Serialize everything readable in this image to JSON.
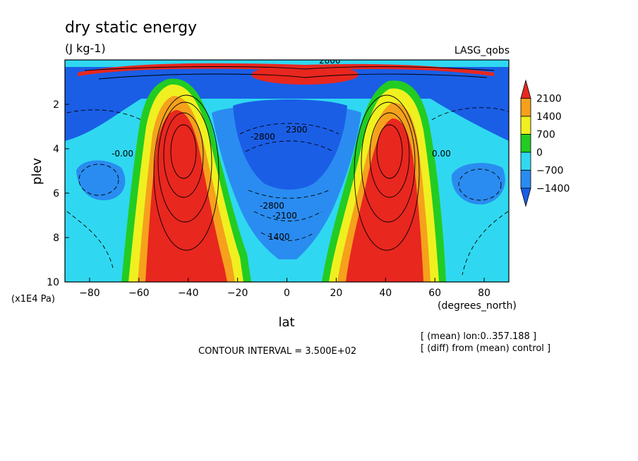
{
  "chart_data": {
    "type": "heatmap",
    "title": "dry static energy",
    "units": "(J kg-1)",
    "model": "LASG_qobs",
    "xlabel": "lat",
    "xunits": "(degrees_north)",
    "ylabel": "plev",
    "yunits": "(x1E4 Pa)",
    "xlim": [
      -90,
      90
    ],
    "ylim": [
      0,
      10
    ],
    "x_ticks": [
      "-80",
      "-60",
      "-40",
      "-20",
      "0",
      "20",
      "40",
      "60",
      "80"
    ],
    "x_tick_values": [
      -80,
      -60,
      -40,
      -20,
      0,
      20,
      40,
      60,
      80
    ],
    "y_ticks": [
      "2",
      "4",
      "6",
      "8",
      "10"
    ],
    "y_tick_values": [
      2,
      4,
      6,
      8,
      10
    ],
    "colorbar": {
      "labels": [
        "2100",
        "1400",
        "700",
        "0",
        "−700",
        "−1400"
      ],
      "levels": [
        2100,
        1400,
        700,
        0,
        -700,
        -1400
      ],
      "colors": [
        "#e8271f",
        "#f5a11c",
        "#f0f020",
        "#22cc22",
        "#2fd8f0",
        "#2a8cf0",
        "#1a5ee6"
      ]
    },
    "contour_interval": "CONTOUR INTERVAL = 3.500E+02",
    "contour_labels": [
      "-2800",
      "-2100",
      "1400",
      "-0.00",
      "0.00",
      "2800",
      "2300"
    ],
    "notes": [
      "[ (mean) lon:0..357.188 ]",
      "[ (diff) from (mean) control ]"
    ],
    "features": [
      {
        "name": "SH midlatitude maximum",
        "lat": -42,
        "plev": 4.2,
        "sign": "positive"
      },
      {
        "name": "NH midlatitude maximum",
        "lat": 42,
        "plev": 4.2,
        "sign": "positive"
      },
      {
        "name": "tropical minimum",
        "lat": 0,
        "plev": 4.5,
        "sign": "negative"
      },
      {
        "name": "upper-level maximum",
        "lat": -2,
        "plev": 0.6,
        "sign": "positive"
      }
    ]
  }
}
